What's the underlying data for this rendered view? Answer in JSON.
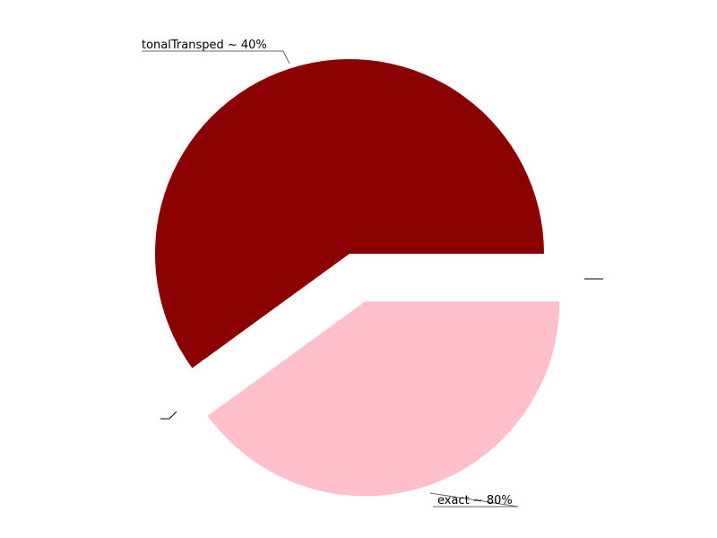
{
  "chart_data": {
    "type": "pie",
    "title": "",
    "legend": "none",
    "slices": [
      {
        "label": "tonalTransped ~ 40%",
        "value": 60,
        "color": "#8b0000",
        "exploded": false
      },
      {
        "label": "exact ~ 80%",
        "value": 40,
        "color": "#ffc0cb",
        "exploded": true
      },
      {
        "label": "",
        "value": 0,
        "color": "#ffffff",
        "exploded": false
      },
      {
        "label": "",
        "value": 0,
        "color": "#ffffff",
        "exploded": false
      }
    ]
  }
}
